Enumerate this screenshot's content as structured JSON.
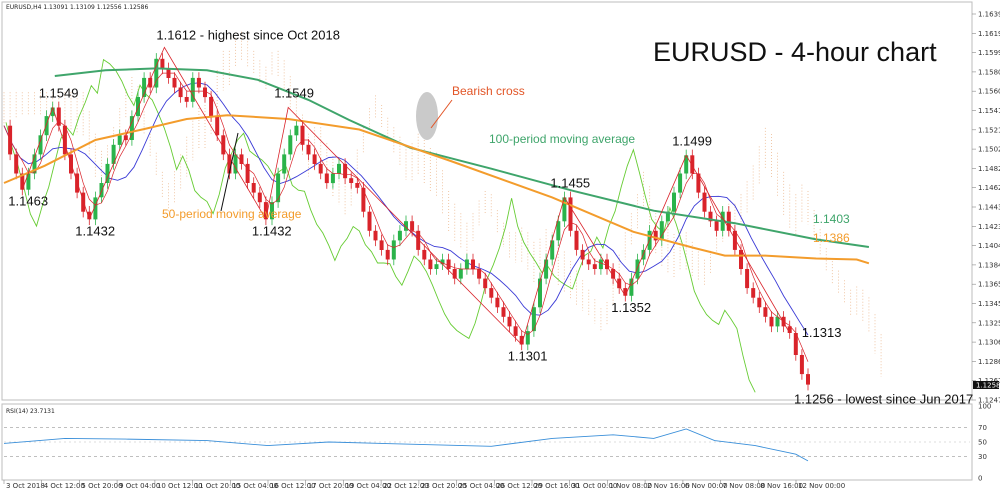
{
  "chart_data": {
    "type": "line",
    "title": "EURUSD - 4-hour chart",
    "header": "EURUSD,H4  1.13091 1.13109 1.12556 1.12586",
    "y_ticks": [
      "1.16390",
      "1.16195",
      "1.15995",
      "1.15800",
      "1.15605",
      "1.15410",
      "1.15215",
      "1.15020",
      "1.14820",
      "1.14625",
      "1.14430",
      "1.14235",
      "1.14040",
      "1.13845",
      "1.13650",
      "1.13455",
      "1.13255",
      "1.13060",
      "1.12865",
      "1.12670",
      "1.12475"
    ],
    "current_price": "1.12586",
    "x_ticks": [
      "3 Oct 2018",
      "4 Oct 12:00",
      "5 Oct 20:00",
      "9 Oct 04:00",
      "10 Oct 12:00",
      "11 Oct 20:00",
      "15 Oct 04:00",
      "16 Oct 12:00",
      "17 Oct 20:00",
      "19 Oct 04:00",
      "22 Oct 12:00",
      "23 Oct 20:00",
      "25 Oct 04:00",
      "26 Oct 12:00",
      "29 Oct 16:00",
      "31 Oct 00:00",
      "1 Nov 08:00",
      "2 Nov 16:00",
      "6 Nov 00:00",
      "7 Nov 08:00",
      "8 Nov 16:00",
      "12 Nov 00:00"
    ],
    "ylim": [
      1.2455,
      1.1649
    ],
    "sma50": [
      [
        0,
        1.147
      ],
      [
        20,
        1.1488
      ],
      [
        45,
        1.1515
      ],
      [
        70,
        1.1527
      ],
      [
        90,
        1.1537
      ],
      [
        110,
        1.1541
      ],
      [
        140,
        1.1537
      ],
      [
        175,
        1.1526
      ],
      [
        220,
        1.1493
      ],
      [
        270,
        1.1455
      ],
      [
        310,
        1.1419
      ],
      [
        340,
        1.1402
      ],
      [
        355,
        1.1394
      ],
      [
        375,
        1.1394
      ],
      [
        400,
        1.1391
      ],
      [
        420,
        1.139
      ],
      [
        426,
        1.1386
      ]
    ],
    "sma100": [
      [
        25,
        1.1582
      ],
      [
        50,
        1.1588
      ],
      [
        75,
        1.159
      ],
      [
        100,
        1.1588
      ],
      [
        125,
        1.1578
      ],
      [
        150,
        1.1557
      ],
      [
        170,
        1.1536
      ],
      [
        200,
        1.1507
      ],
      [
        240,
        1.1485
      ],
      [
        280,
        1.1462
      ],
      [
        320,
        1.1441
      ],
      [
        360,
        1.1428
      ],
      [
        400,
        1.1411
      ],
      [
        426,
        1.1403
      ]
    ],
    "close": [
      [
        0,
        1.153
      ],
      [
        3,
        1.15
      ],
      [
        6,
        1.148
      ],
      [
        9,
        1.1463
      ],
      [
        12,
        1.148
      ],
      [
        15,
        1.15
      ],
      [
        18,
        1.152
      ],
      [
        21,
        1.154
      ],
      [
        24,
        1.1549
      ],
      [
        27,
        1.153
      ],
      [
        30,
        1.15
      ],
      [
        33,
        1.148
      ],
      [
        36,
        1.146
      ],
      [
        39,
        1.144
      ],
      [
        42,
        1.1432
      ],
      [
        45,
        1.1455
      ],
      [
        48,
        1.147
      ],
      [
        51,
        1.149
      ],
      [
        54,
        1.151
      ],
      [
        57,
        1.152
      ],
      [
        60,
        1.1515
      ],
      [
        63,
        1.154
      ],
      [
        66,
        1.156
      ],
      [
        69,
        1.158
      ],
      [
        72,
        1.157
      ],
      [
        75,
        1.16
      ],
      [
        78,
        1.159
      ],
      [
        81,
        1.158
      ],
      [
        84,
        1.157
      ],
      [
        87,
        1.156
      ],
      [
        90,
        1.1555
      ],
      [
        93,
        1.158
      ],
      [
        96,
        1.157
      ],
      [
        99,
        1.156
      ],
      [
        102,
        1.154
      ],
      [
        105,
        1.152
      ],
      [
        108,
        1.15
      ],
      [
        111,
        1.148
      ],
      [
        114,
        1.15
      ],
      [
        117,
        1.149
      ],
      [
        120,
        1.147
      ],
      [
        123,
        1.146
      ],
      [
        126,
        1.145
      ],
      [
        129,
        1.1432
      ],
      [
        132,
        1.145
      ],
      [
        135,
        1.148
      ],
      [
        138,
        1.15
      ],
      [
        141,
        1.152
      ],
      [
        144,
        1.153
      ],
      [
        147,
        1.151
      ],
      [
        150,
        1.15
      ],
      [
        153,
        1.149
      ],
      [
        156,
        1.148
      ],
      [
        159,
        1.147
      ],
      [
        162,
        1.148
      ],
      [
        165,
        1.149
      ],
      [
        168,
        1.1475
      ],
      [
        171,
        1.147
      ],
      [
        174,
        1.1465
      ],
      [
        177,
        1.144
      ],
      [
        180,
        1.142
      ],
      [
        183,
        1.141
      ],
      [
        186,
        1.14
      ],
      [
        189,
        1.139
      ],
      [
        192,
        1.141
      ],
      [
        195,
        1.142
      ],
      [
        198,
        1.143
      ],
      [
        201,
        1.142
      ],
      [
        204,
        1.14
      ],
      [
        207,
        1.139
      ],
      [
        210,
        1.138
      ],
      [
        213,
        1.1385
      ],
      [
        216,
        1.139
      ],
      [
        219,
        1.138
      ],
      [
        222,
        1.137
      ],
      [
        225,
        1.138
      ],
      [
        228,
        1.139
      ],
      [
        231,
        1.138
      ],
      [
        234,
        1.137
      ],
      [
        237,
        1.136
      ],
      [
        240,
        1.135
      ],
      [
        243,
        1.134
      ],
      [
        246,
        1.133
      ],
      [
        249,
        1.132
      ],
      [
        252,
        1.131
      ],
      [
        255,
        1.1301
      ],
      [
        258,
        1.1315
      ],
      [
        261,
        1.134
      ],
      [
        264,
        1.137
      ],
      [
        267,
        1.139
      ],
      [
        270,
        1.141
      ],
      [
        273,
        1.143
      ],
      [
        276,
        1.1455
      ],
      [
        279,
        1.142
      ],
      [
        282,
        1.14
      ],
      [
        285,
        1.139
      ],
      [
        288,
        1.1385
      ],
      [
        291,
        1.138
      ],
      [
        294,
        1.139
      ],
      [
        297,
        1.138
      ],
      [
        300,
        1.137
      ],
      [
        303,
        1.136
      ],
      [
        306,
        1.1352
      ],
      [
        309,
        1.137
      ],
      [
        312,
        1.139
      ],
      [
        315,
        1.14
      ],
      [
        318,
        1.142
      ],
      [
        321,
        1.141
      ],
      [
        324,
        1.143
      ],
      [
        327,
        1.144
      ],
      [
        330,
        1.146
      ],
      [
        333,
        1.148
      ],
      [
        336,
        1.1499
      ],
      [
        339,
        1.148
      ],
      [
        342,
        1.146
      ],
      [
        345,
        1.144
      ],
      [
        348,
        1.143
      ],
      [
        351,
        1.142
      ],
      [
        354,
        1.144
      ],
      [
        357,
        1.142
      ],
      [
        360,
        1.14
      ],
      [
        363,
        1.138
      ],
      [
        366,
        1.136
      ],
      [
        369,
        1.135
      ],
      [
        372,
        1.134
      ],
      [
        375,
        1.133
      ],
      [
        378,
        1.132
      ],
      [
        381,
        1.133
      ],
      [
        384,
        1.132
      ],
      [
        387,
        1.1313
      ],
      [
        390,
        1.129
      ],
      [
        393,
        1.127
      ],
      [
        396,
        1.1259
      ]
    ],
    "rsi": [
      [
        0,
        48
      ],
      [
        30,
        55
      ],
      [
        60,
        54
      ],
      [
        100,
        52
      ],
      [
        130,
        45
      ],
      [
        160,
        50
      ],
      [
        200,
        47
      ],
      [
        240,
        44
      ],
      [
        270,
        55
      ],
      [
        300,
        60
      ],
      [
        320,
        55
      ],
      [
        336,
        68
      ],
      [
        350,
        52
      ],
      [
        370,
        45
      ],
      [
        390,
        33
      ],
      [
        396,
        23.7
      ]
    ],
    "rsi_label": "RSI(14) 23.7131",
    "rsi_ticks": [
      "100",
      "70",
      "50",
      "30",
      "0"
    ],
    "annotations": [
      {
        "text": "1.1612 - highest since Oct 2018",
        "x": 79,
        "y": 1.1612
      },
      {
        "text": "1.1549",
        "x": 24,
        "y": 1.1549
      },
      {
        "text": "1.1463",
        "x": 9,
        "y": 1.1463
      },
      {
        "text": "1.1432",
        "x": 42,
        "y": 1.1432
      },
      {
        "text": "1.1549",
        "x": 140,
        "y": 1.1549
      },
      {
        "text": "1.1432",
        "x": 129,
        "y": 1.1432
      },
      {
        "text": "1.1455",
        "x": 276,
        "y": 1.1455
      },
      {
        "text": "1.1499",
        "x": 336,
        "y": 1.1499
      },
      {
        "text": "1.1301",
        "x": 255,
        "y": 1.1301
      },
      {
        "text": "1.1352",
        "x": 306,
        "y": 1.1352
      },
      {
        "text": "1.1313",
        "x": 387,
        "y": 1.1313
      },
      {
        "text": "1.1256 - lowest since Jun 2017",
        "x": 396,
        "y": 1.1256
      }
    ],
    "labels": {
      "bearish_cross": "Bearish cross",
      "sma100_label": "100-period moving average",
      "sma50_label": "50-period moving average",
      "last_sma100": "1.1403",
      "last_sma50": "1.1386"
    },
    "colors": {
      "sma50": "#f39c2c",
      "sma100": "#3fa56b",
      "candle_up": "#2ab34a",
      "candle_down": "#d9232a",
      "tenkan": "#d9232a",
      "kijun": "#3a3ad6",
      "chikou": "#66cc33",
      "cloud": "#f0c8a8",
      "annotation_red": "#e25527",
      "annotation_green": "#3fa56b",
      "annotation_orange": "#f39c2c"
    }
  }
}
